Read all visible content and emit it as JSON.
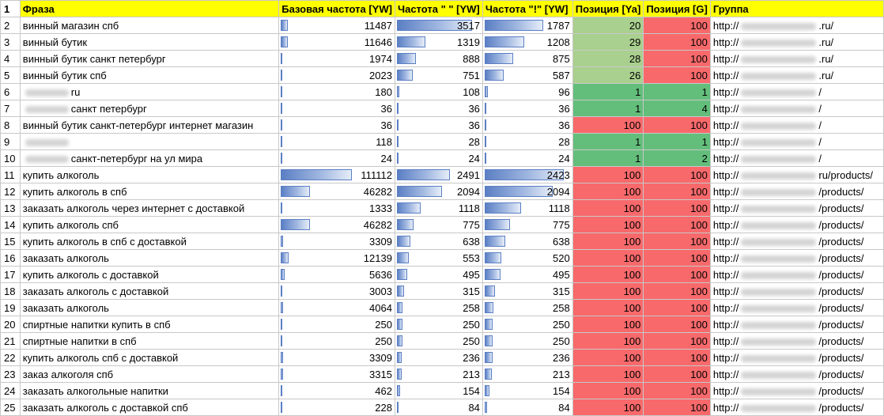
{
  "headers": {
    "rownum": "1",
    "phrase": "Фраза",
    "base_freq": "Базовая частота [YW]",
    "quote_freq": "Частота \" \" [YW]",
    "excl_freq": "Частота \"!\" [YW]",
    "pos_ya": "Позиция [Ya]",
    "pos_g": "Позиция [G]",
    "group": "Группа"
  },
  "max_values": {
    "base": 111112,
    "quote": 3517,
    "excl": 2423
  },
  "colors": {
    "header_bg": "#ffff00",
    "green": "#63be7b",
    "light_green": "#a9d08e",
    "red": "#f8696b",
    "bar": "#5b7fc4"
  },
  "rows": [
    {
      "n": "2",
      "pre_blur": false,
      "phrase": "винный магазин спб",
      "base": 11487,
      "quote": 3517,
      "excl": 1787,
      "ya": 20,
      "g": 100,
      "ya_color": "light_green",
      "g_color": "red",
      "group_prefix": "http://",
      "group_suffix": ".ru/"
    },
    {
      "n": "3",
      "pre_blur": false,
      "phrase": "винный бутик",
      "base": 11646,
      "quote": 1319,
      "excl": 1208,
      "ya": 29,
      "g": 100,
      "ya_color": "light_green",
      "g_color": "red",
      "group_prefix": "http://",
      "group_suffix": ".ru/"
    },
    {
      "n": "4",
      "pre_blur": false,
      "phrase": "винный бутик санкт петербург",
      "base": 1974,
      "quote": 888,
      "excl": 875,
      "ya": 28,
      "g": 100,
      "ya_color": "light_green",
      "g_color": "red",
      "group_prefix": "http://",
      "group_suffix": ".ru/"
    },
    {
      "n": "5",
      "pre_blur": false,
      "phrase": "винный бутик спб",
      "base": 2023,
      "quote": 751,
      "excl": 587,
      "ya": 26,
      "g": 100,
      "ya_color": "light_green",
      "g_color": "red",
      "group_prefix": "http://",
      "group_suffix": ".ru/"
    },
    {
      "n": "6",
      "pre_blur": true,
      "phrase": "ru",
      "base": 180,
      "quote": 108,
      "excl": 96,
      "ya": 1,
      "g": 1,
      "ya_color": "green",
      "g_color": "green",
      "group_prefix": "http://",
      "group_suffix": "/"
    },
    {
      "n": "7",
      "pre_blur": true,
      "phrase": "санкт петербург",
      "base": 36,
      "quote": 36,
      "excl": 36,
      "ya": 1,
      "g": 4,
      "ya_color": "green",
      "g_color": "green",
      "group_prefix": "http://",
      "group_suffix": "/"
    },
    {
      "n": "8",
      "pre_blur": false,
      "phrase": "винный бутик санкт-петербург интернет магазин",
      "base": 36,
      "quote": 36,
      "excl": 36,
      "ya": 100,
      "g": 100,
      "ya_color": "red",
      "g_color": "red",
      "group_prefix": "http://",
      "group_suffix": "/"
    },
    {
      "n": "9",
      "pre_blur": true,
      "phrase": "",
      "base": 118,
      "quote": 28,
      "excl": 28,
      "ya": 1,
      "g": 1,
      "ya_color": "green",
      "g_color": "green",
      "group_prefix": "http://",
      "group_suffix": "/"
    },
    {
      "n": "10",
      "pre_blur": true,
      "phrase": "санкт-петербург на ул мира",
      "base": 24,
      "quote": 24,
      "excl": 24,
      "ya": 1,
      "g": 2,
      "ya_color": "green",
      "g_color": "green",
      "group_prefix": "http://",
      "group_suffix": "/"
    },
    {
      "n": "11",
      "pre_blur": false,
      "phrase": "купить алкоголь",
      "base": 111112,
      "quote": 2491,
      "excl": 2423,
      "ya": 100,
      "g": 100,
      "ya_color": "red",
      "g_color": "red",
      "group_prefix": "http://",
      "group_suffix": "ru/products/"
    },
    {
      "n": "12",
      "pre_blur": false,
      "phrase": "купить алкоголь в спб",
      "base": 46282,
      "quote": 2094,
      "excl": 2094,
      "ya": 100,
      "g": 100,
      "ya_color": "red",
      "g_color": "red",
      "group_prefix": "http://",
      "group_suffix": "/products/"
    },
    {
      "n": "13",
      "pre_blur": false,
      "phrase": "заказать алкоголь через интернет с доставкой",
      "base": 1333,
      "quote": 1118,
      "excl": 1118,
      "ya": 100,
      "g": 100,
      "ya_color": "red",
      "g_color": "red",
      "group_prefix": "http://",
      "group_suffix": "/products/"
    },
    {
      "n": "14",
      "pre_blur": false,
      "phrase": "купить алкоголь спб",
      "base": 46282,
      "quote": 775,
      "excl": 775,
      "ya": 100,
      "g": 100,
      "ya_color": "red",
      "g_color": "red",
      "group_prefix": "http://",
      "group_suffix": "/products/"
    },
    {
      "n": "15",
      "pre_blur": false,
      "phrase": "купить алкоголь в спб с доставкой",
      "base": 3309,
      "quote": 638,
      "excl": 638,
      "ya": 100,
      "g": 100,
      "ya_color": "red",
      "g_color": "red",
      "group_prefix": "http://",
      "group_suffix": "/products/"
    },
    {
      "n": "16",
      "pre_blur": false,
      "phrase": "заказать алкоголь",
      "base": 12139,
      "quote": 553,
      "excl": 520,
      "ya": 100,
      "g": 100,
      "ya_color": "red",
      "g_color": "red",
      "group_prefix": "http://",
      "group_suffix": "/products/"
    },
    {
      "n": "17",
      "pre_blur": false,
      "phrase": "купить алкоголь с доставкой",
      "base": 5636,
      "quote": 495,
      "excl": 495,
      "ya": 100,
      "g": 100,
      "ya_color": "red",
      "g_color": "red",
      "group_prefix": "http://",
      "group_suffix": "/products/"
    },
    {
      "n": "18",
      "pre_blur": false,
      "phrase": "заказать алкоголь с доставкой",
      "base": 3003,
      "quote": 315,
      "excl": 315,
      "ya": 100,
      "g": 100,
      "ya_color": "red",
      "g_color": "red",
      "group_prefix": "http://",
      "group_suffix": "/products/"
    },
    {
      "n": "19",
      "pre_blur": false,
      "phrase": "заказать алкоголь",
      "base": 4064,
      "quote": 258,
      "excl": 258,
      "ya": 100,
      "g": 100,
      "ya_color": "red",
      "g_color": "red",
      "group_prefix": "http://",
      "group_suffix": "/products/"
    },
    {
      "n": "20",
      "pre_blur": false,
      "phrase": "спиртные напитки купить в спб",
      "base": 250,
      "quote": 250,
      "excl": 250,
      "ya": 100,
      "g": 100,
      "ya_color": "red",
      "g_color": "red",
      "group_prefix": "http://",
      "group_suffix": "/products/"
    },
    {
      "n": "21",
      "pre_blur": false,
      "phrase": "спиртные напитки в спб",
      "base": 250,
      "quote": 250,
      "excl": 250,
      "ya": 100,
      "g": 100,
      "ya_color": "red",
      "g_color": "red",
      "group_prefix": "http://",
      "group_suffix": "/products/"
    },
    {
      "n": "22",
      "pre_blur": false,
      "phrase": "купить алкоголь спб с доставкой",
      "base": 3309,
      "quote": 236,
      "excl": 236,
      "ya": 100,
      "g": 100,
      "ya_color": "red",
      "g_color": "red",
      "group_prefix": "http://",
      "group_suffix": "/products/"
    },
    {
      "n": "23",
      "pre_blur": false,
      "phrase": "заказ алкоголя спб",
      "base": 3315,
      "quote": 213,
      "excl": 213,
      "ya": 100,
      "g": 100,
      "ya_color": "red",
      "g_color": "red",
      "group_prefix": "http://",
      "group_suffix": "/products/"
    },
    {
      "n": "24",
      "pre_blur": false,
      "phrase": "заказать алкогольные напитки",
      "base": 462,
      "quote": 154,
      "excl": 154,
      "ya": 100,
      "g": 100,
      "ya_color": "red",
      "g_color": "red",
      "group_prefix": "http://",
      "group_suffix": "/products/"
    },
    {
      "n": "25",
      "pre_blur": false,
      "phrase": "заказать алкоголь с доставкой спб",
      "base": 228,
      "quote": 84,
      "excl": 84,
      "ya": 100,
      "g": 100,
      "ya_color": "red",
      "g_color": "red",
      "group_prefix": "http://",
      "group_suffix": "/products/"
    }
  ]
}
